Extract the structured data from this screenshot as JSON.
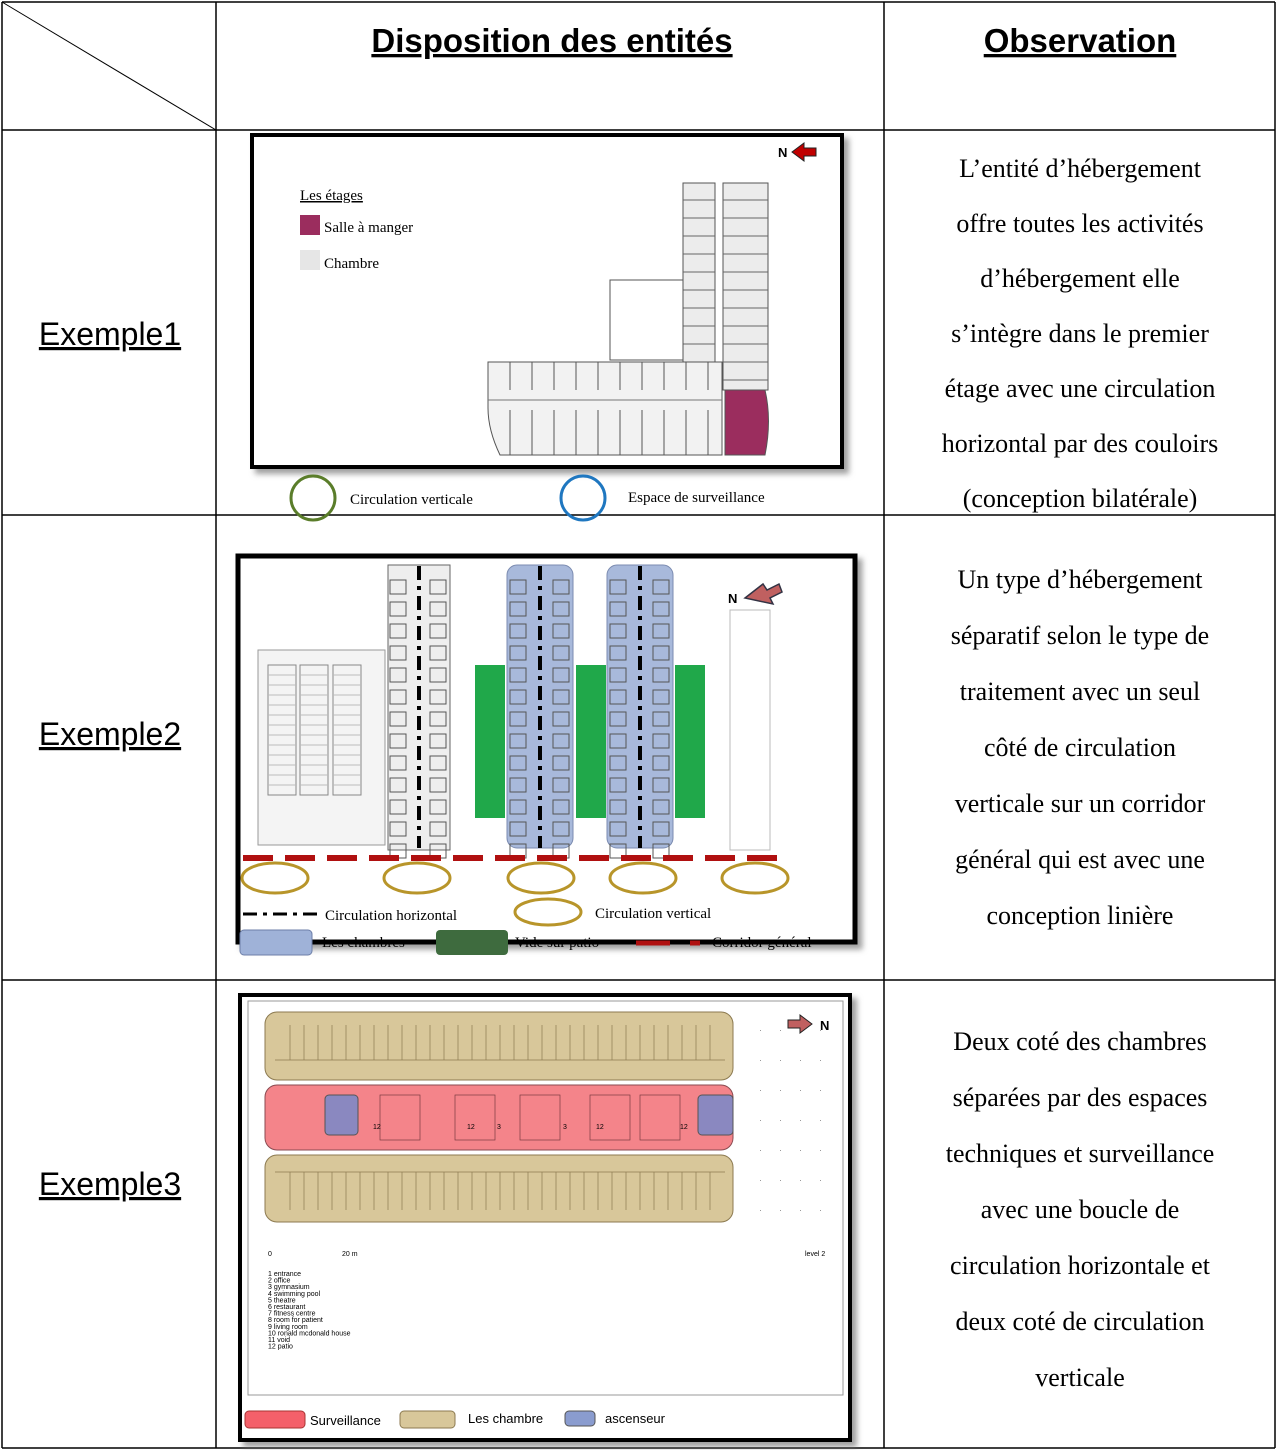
{
  "header": {
    "columns": [
      "Disposition des entités",
      "Observation"
    ]
  },
  "rows": [
    {
      "label": "Exemple1",
      "plan": {
        "north": "N",
        "legend_title": "Les étages",
        "legend": [
          "Salle à manger",
          "Chambre"
        ],
        "keys": [
          "Circulation verticale",
          "Espace de surveillance"
        ]
      },
      "observation": [
        "L’entité d’hébergement",
        "offre toutes les activités",
        "d’hébergement elle",
        "s’intègre dans le premier",
        "étage avec une circulation",
        "horizontal par des couloirs",
        "(conception bilatérale)"
      ]
    },
    {
      "label": "Exemple2",
      "plan": {
        "north": "N",
        "keys": [
          "Circulation horizontal",
          "Circulation vertical",
          "Les chambres",
          "Vide sur patio",
          "Corridor général"
        ]
      },
      "observation": [
        "Un type d’hébergement",
        "séparatif selon le type de",
        "traitement avec un seul",
        "côté de circulation",
        "verticale sur un corridor",
        "général qui est avec une",
        "conception linière"
      ]
    },
    {
      "label": "Exemple3",
      "plan": {
        "north": "N",
        "scale": [
          "0",
          "20 m"
        ],
        "level": "level 2",
        "room_numbers": [
          "12",
          "12",
          "3",
          "3",
          "12",
          "12"
        ],
        "list": [
          "1 entrance",
          "2 office",
          "3 gymnasium",
          "4 swimming pool",
          "5 theatre",
          "6 restaurant",
          "7 fitness centre",
          "8 room for patient",
          "9 living room",
          "10 ronald mcdonald house",
          "11 void",
          "12 patio"
        ],
        "keys": [
          "Surveillance",
          "Les chambre",
          "ascenseur"
        ]
      },
      "observation": [
        "Deux coté des chambres",
        "séparées par des espaces",
        "techniques et surveillance",
        "avec une boucle de",
        "circulation horizontale et",
        "deux coté de circulation",
        "verticale"
      ]
    }
  ]
}
